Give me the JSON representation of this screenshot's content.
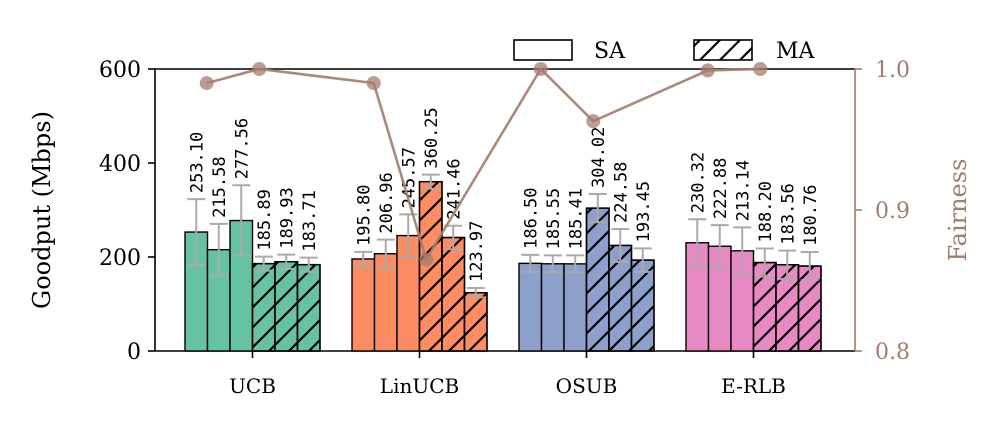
{
  "chart_data": {
    "type": "bar",
    "categories": [
      "UCB",
      "LinUCB",
      "OSUB",
      "E-RLB"
    ],
    "series": [
      {
        "name": "SA",
        "hatched": false,
        "bars": [
          [
            253.1,
            215.58,
            277.56
          ],
          [
            195.8,
            206.96,
            245.57
          ],
          [
            186.5,
            185.55,
            185.41
          ],
          [
            230.32,
            222.88,
            213.14
          ]
        ]
      },
      {
        "name": "MA",
        "hatched": true,
        "bars": [
          [
            185.89,
            189.93,
            183.71
          ],
          [
            360.25,
            241.46,
            123.97
          ],
          [
            304.02,
            224.58,
            193.45
          ],
          [
            188.2,
            183.56,
            180.76
          ]
        ]
      }
    ],
    "errors": [
      [
        [
          70,
          55,
          75
        ],
        [
          15,
          15,
          15
        ]
      ],
      [
        [
          15,
          30,
          45
        ],
        [
          15,
          25,
          10
        ]
      ],
      [
        [
          18,
          18,
          18
        ],
        [
          30,
          35,
          25
        ]
      ],
      [
        [
          50,
          45,
          50
        ],
        [
          30,
          30,
          30
        ]
      ]
    ],
    "fairness": {
      "label": "Fairness",
      "x": [
        "UCB-SA",
        "UCB-MA",
        "LinUCB-SA",
        "LinUCB-MA",
        "OSUB-SA",
        "OSUB-MA",
        "E-RLB-SA",
        "E-RLB-MA"
      ],
      "values": [
        0.99,
        1.0,
        0.99,
        0.865,
        1.0,
        0.963,
        0.999,
        1.0
      ],
      "ylim": [
        0.8,
        1.0
      ],
      "ticks": [
        "0.8",
        "0.9",
        "1.0"
      ],
      "color": "#a47c6e"
    },
    "ylabel": "Goodput (Mbps)",
    "ylim": [
      0,
      600
    ],
    "yticks": [
      "0",
      "200",
      "400",
      "600"
    ],
    "legend": {
      "position": "top-right",
      "items": [
        "SA",
        "MA"
      ]
    },
    "colors": {
      "UCB": "#66c2a5",
      "LinUCB": "#fc8d62",
      "OSUB": "#8da0cb",
      "E-RLB": "#e78ac3",
      "error": "#aaaaaa"
    }
  }
}
